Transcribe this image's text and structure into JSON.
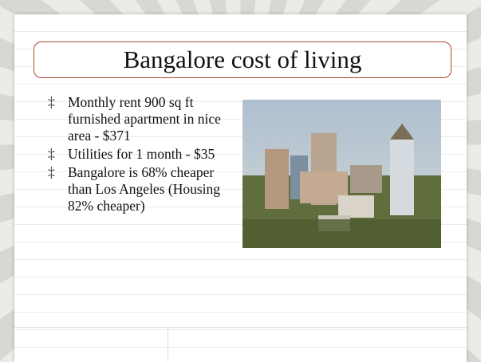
{
  "slide": {
    "title": "Bangalore cost of living",
    "bullets": [
      "Monthly rent 900 sq ft furnished apartment in nice area - $371",
      "Utilities for 1 month - $35",
      "Bangalore is 68% cheaper than Los Angeles (Housing 82% cheaper)"
    ]
  }
}
